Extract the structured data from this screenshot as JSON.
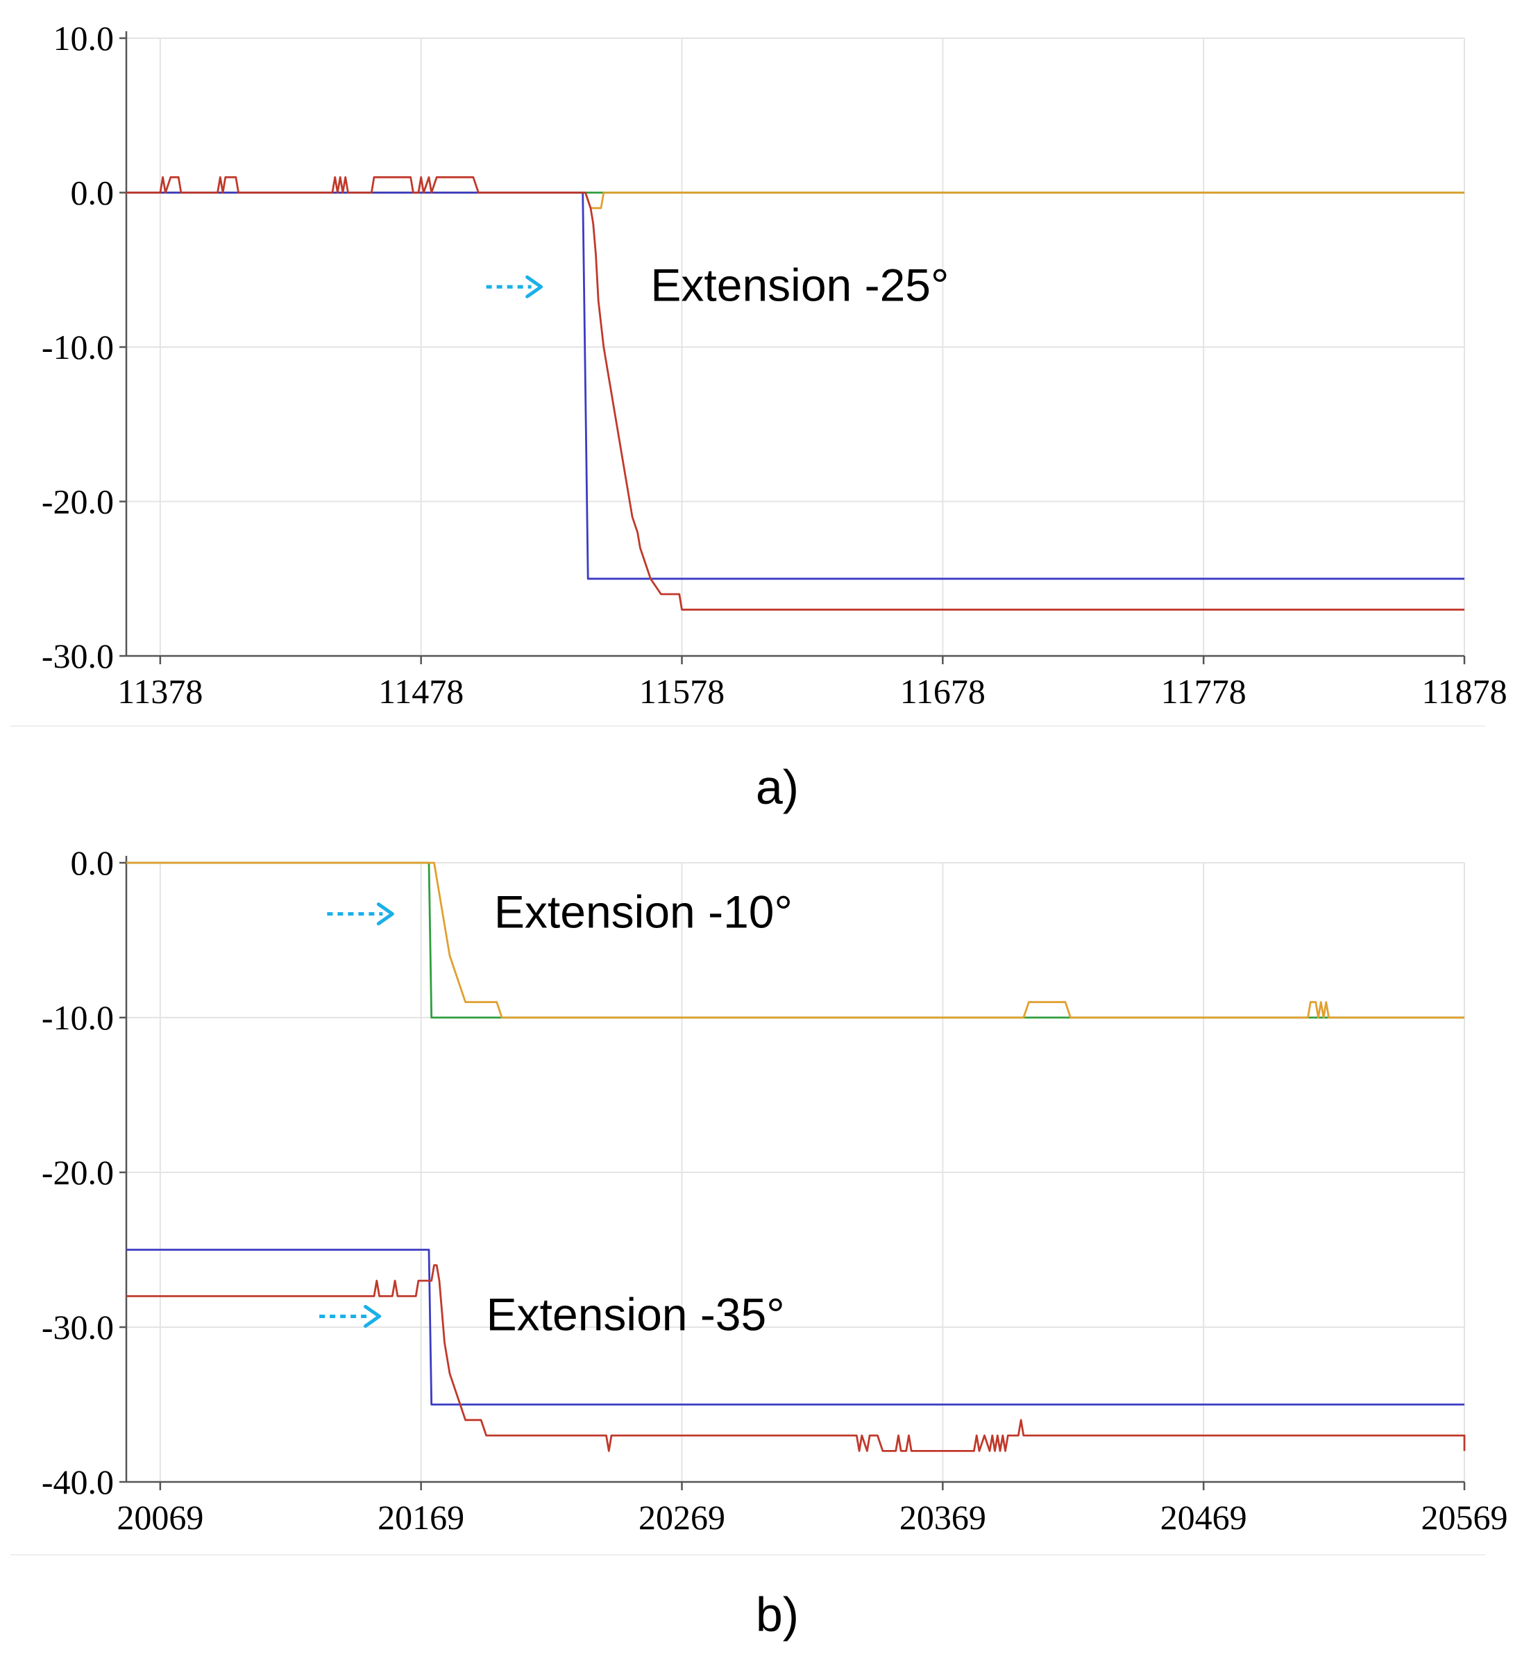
{
  "colors": {
    "blue": "#3b3bc4",
    "red": "#c0392b",
    "green": "#2e9e3e",
    "orange": "#e0a030",
    "arrow": "#1ab0e8",
    "grid": "#e4e4e4",
    "axis": "#555555"
  },
  "chart_data": [
    {
      "type": "line",
      "panel_label": "a)",
      "xlabel": "",
      "ylabel": "",
      "xlim": [
        11365,
        11878
      ],
      "ylim": [
        -30,
        10
      ],
      "x_ticks": [
        11378,
        11478,
        11578,
        11678,
        11778,
        11878
      ],
      "x_tick_labels": [
        "11378",
        "11478",
        "11578",
        "11678",
        "11778",
        "11878"
      ],
      "y_ticks": [
        10,
        0,
        -10,
        -20,
        -30
      ],
      "y_tick_labels": [
        "10.0",
        "0.0",
        "-10.0",
        "-20.0",
        "-30.0"
      ],
      "grid": true,
      "annotations": [
        {
          "text": "Extension -25°",
          "x": 11566,
          "y": -7,
          "arrow_x": [
            11503,
            11524
          ]
        }
      ],
      "series": [
        {
          "name": "blue",
          "color": "blue",
          "points": [
            [
              11365,
              0
            ],
            [
              11540,
              0
            ],
            [
              11542,
              -25
            ],
            [
              11878,
              -25
            ]
          ]
        },
        {
          "name": "red",
          "color": "red",
          "points": [
            [
              11365,
              0
            ],
            [
              11378,
              0
            ],
            [
              11379,
              1
            ],
            [
              11380,
              0
            ],
            [
              11382,
              1
            ],
            [
              11385,
              1
            ],
            [
              11386,
              0
            ],
            [
              11400,
              0
            ],
            [
              11401,
              1
            ],
            [
              11402,
              0
            ],
            [
              11403,
              1
            ],
            [
              11407,
              1
            ],
            [
              11408,
              0
            ],
            [
              11444,
              0
            ],
            [
              11445,
              1
            ],
            [
              11446,
              0
            ],
            [
              11447,
              1
            ],
            [
              11448,
              0
            ],
            [
              11449,
              1
            ],
            [
              11450,
              0
            ],
            [
              11459,
              0
            ],
            [
              11460,
              1
            ],
            [
              11474,
              1
            ],
            [
              11475,
              0
            ],
            [
              11477,
              0
            ],
            [
              11478,
              1
            ],
            [
              11479,
              0
            ],
            [
              11481,
              1
            ],
            [
              11482,
              0
            ],
            [
              11484,
              1
            ],
            [
              11498,
              1
            ],
            [
              11500,
              0
            ],
            [
              11541,
              0
            ],
            [
              11543,
              -1
            ],
            [
              11544,
              -2
            ],
            [
              11545,
              -4
            ],
            [
              11546,
              -7
            ],
            [
              11548,
              -10
            ],
            [
              11550,
              -12
            ],
            [
              11552,
              -14
            ],
            [
              11554,
              -16
            ],
            [
              11556,
              -18
            ],
            [
              11557,
              -19
            ],
            [
              11559,
              -21
            ],
            [
              11561,
              -22
            ],
            [
              11562,
              -23
            ],
            [
              11564,
              -24
            ],
            [
              11566,
              -25
            ],
            [
              11570,
              -26
            ],
            [
              11577,
              -26
            ],
            [
              11578,
              -27
            ],
            [
              11878,
              -27
            ]
          ]
        },
        {
          "name": "green",
          "color": "green",
          "points": [
            [
              11365,
              0
            ],
            [
              11878,
              0
            ]
          ]
        },
        {
          "name": "orange",
          "color": "orange",
          "points": [
            [
              11365,
              0
            ],
            [
              11541,
              0
            ],
            [
              11543,
              -1
            ],
            [
              11547,
              -1
            ],
            [
              11548,
              0
            ],
            [
              11878,
              0
            ]
          ]
        }
      ]
    },
    {
      "type": "line",
      "panel_label": "b)",
      "xlabel": "",
      "ylabel": "",
      "xlim": [
        20056,
        20569
      ],
      "ylim": [
        -40,
        0
      ],
      "x_ticks": [
        20069,
        20169,
        20269,
        20369,
        20469,
        20569
      ],
      "x_tick_labels": [
        "20069",
        "20169",
        "20269",
        "20369",
        "20469",
        "20569"
      ],
      "y_ticks": [
        0,
        -10,
        -20,
        -30,
        -40
      ],
      "y_tick_labels": [
        "0.0",
        "-10.0",
        "-20.0",
        "-30.0",
        "-40.0"
      ],
      "grid": true,
      "annotations": [
        {
          "text": "Extension -10°",
          "x": 20197,
          "y": -4.2,
          "arrow_x": [
            20133,
            20158
          ]
        },
        {
          "text": "Extension -35°",
          "x": 20194,
          "y": -30.2,
          "arrow_x": [
            20130,
            20153
          ]
        }
      ],
      "series": [
        {
          "name": "blue",
          "color": "blue",
          "points": [
            [
              20056,
              -25
            ],
            [
              20172,
              -25
            ],
            [
              20173,
              -35
            ],
            [
              20569,
              -35
            ]
          ]
        },
        {
          "name": "red",
          "color": "red",
          "points": [
            [
              20056,
              -28
            ],
            [
              20151,
              -28
            ],
            [
              20152,
              -27
            ],
            [
              20153,
              -28
            ],
            [
              20158,
              -28
            ],
            [
              20159,
              -27
            ],
            [
              20160,
              -28
            ],
            [
              20167,
              -28
            ],
            [
              20168,
              -27
            ],
            [
              20173,
              -27
            ],
            [
              20174,
              -26
            ],
            [
              20175,
              -26
            ],
            [
              20176,
              -27
            ],
            [
              20177,
              -29
            ],
            [
              20178,
              -31
            ],
            [
              20180,
              -33
            ],
            [
              20182,
              -34
            ],
            [
              20184,
              -35
            ],
            [
              20186,
              -36
            ],
            [
              20192,
              -36
            ],
            [
              20194,
              -37
            ],
            [
              20240,
              -37
            ],
            [
              20241,
              -38
            ],
            [
              20242,
              -37
            ],
            [
              20336,
              -37
            ],
            [
              20337,
              -38
            ],
            [
              20338,
              -37
            ],
            [
              20340,
              -38
            ],
            [
              20341,
              -37
            ],
            [
              20344,
              -37
            ],
            [
              20346,
              -38
            ],
            [
              20351,
              -38
            ],
            [
              20352,
              -37
            ],
            [
              20353,
              -38
            ],
            [
              20355,
              -38
            ],
            [
              20356,
              -37
            ],
            [
              20357,
              -38
            ],
            [
              20381,
              -38
            ],
            [
              20382,
              -37
            ],
            [
              20383,
              -38
            ],
            [
              20385,
              -37
            ],
            [
              20387,
              -38
            ],
            [
              20388,
              -37
            ],
            [
              20389,
              -38
            ],
            [
              20390,
              -37
            ],
            [
              20391,
              -38
            ],
            [
              20392,
              -37
            ],
            [
              20393,
              -38
            ],
            [
              20394,
              -37
            ],
            [
              20398,
              -37
            ],
            [
              20399,
              -36
            ],
            [
              20400,
              -37
            ],
            [
              20569,
              -37
            ],
            [
              20569,
              -38
            ]
          ]
        },
        {
          "name": "green",
          "color": "green",
          "points": [
            [
              20056,
              0
            ],
            [
              20172,
              0
            ],
            [
              20173,
              -10
            ],
            [
              20569,
              -10
            ]
          ]
        },
        {
          "name": "orange",
          "color": "orange",
          "points": [
            [
              20056,
              0
            ],
            [
              20174,
              0
            ],
            [
              20176,
              -2
            ],
            [
              20178,
              -4
            ],
            [
              20180,
              -6
            ],
            [
              20182,
              -7
            ],
            [
              20184,
              -8
            ],
            [
              20186,
              -9
            ],
            [
              20198,
              -9
            ],
            [
              20200,
              -10
            ],
            [
              20400,
              -10
            ],
            [
              20402,
              -9
            ],
            [
              20416,
              -9
            ],
            [
              20418,
              -10
            ],
            [
              20509,
              -10
            ],
            [
              20510,
              -9
            ],
            [
              20512,
              -9
            ],
            [
              20513,
              -10
            ],
            [
              20514,
              -9
            ],
            [
              20515,
              -10
            ],
            [
              20516,
              -9
            ],
            [
              20517,
              -10
            ],
            [
              20569,
              -10
            ]
          ]
        }
      ]
    }
  ]
}
